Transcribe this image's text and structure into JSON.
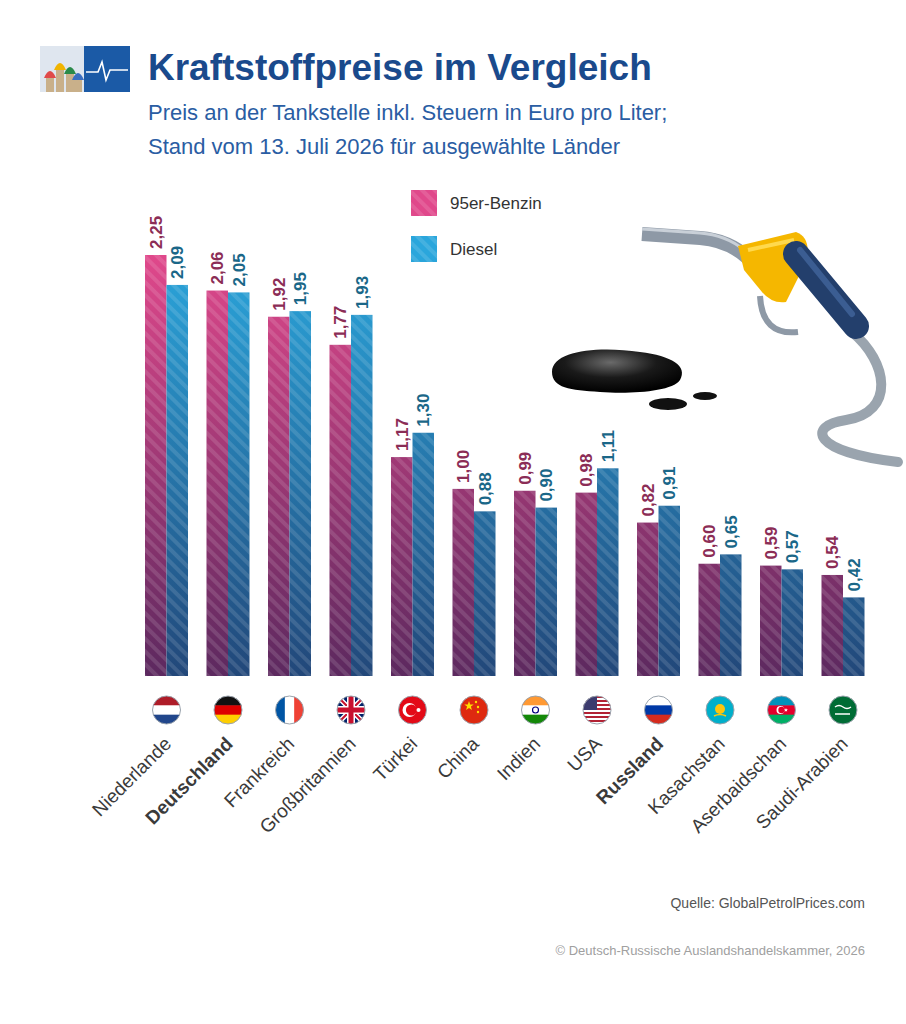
{
  "chart_data": {
    "type": "bar",
    "title": "Kraftstoffpreise im Vergleich",
    "subtitle": [
      "Preis an der Tankstelle inkl. Steuern in Euro pro Liter;",
      "Stand vom 13. Juli 2026 für ausgewählte Länder"
    ],
    "categories": [
      "Niederlande",
      "Deutschland",
      "Frankreich",
      "Großbritannien",
      "Türkei",
      "China",
      "Indien",
      "USA",
      "Russland",
      "Kasachstan",
      "Aserbaidschan",
      "Saudi-Arabien"
    ],
    "series": [
      {
        "name": "95er-Benzin",
        "color": "#e0488b",
        "values": [
          2.25,
          2.06,
          1.92,
          1.77,
          1.17,
          1.0,
          0.99,
          0.98,
          0.82,
          0.6,
          0.59,
          0.54
        ],
        "value_labels": [
          "2,25",
          "2,06",
          "1,92",
          "1,77",
          "1,17",
          "1,00",
          "0,99",
          "0,98",
          "0,82",
          "0,60",
          "0,59",
          "0,54"
        ]
      },
      {
        "name": "Diesel",
        "color": "#2aa6dc",
        "values": [
          2.09,
          2.05,
          1.95,
          1.93,
          1.3,
          0.88,
          0.9,
          1.11,
          0.91,
          0.65,
          0.57,
          0.42
        ],
        "value_labels": [
          "2,09",
          "2,05",
          "1,95",
          "1,93",
          "1,30",
          "0,88",
          "0,90",
          "1,11",
          "0,91",
          "0,65",
          "0,57",
          "0,42"
        ]
      }
    ],
    "ylim": [
      0,
      2.25
    ],
    "data_labels": true,
    "tick_labels": "x",
    "legend": "top",
    "grid": false,
    "source": "Quelle: GlobalPetrolPrices.com",
    "copyright": "© Deutsch-Russische Auslandshandelskammer, 2026"
  }
}
